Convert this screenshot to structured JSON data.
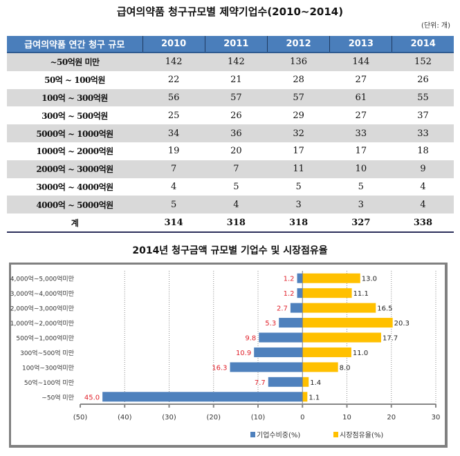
{
  "table": {
    "title": "급여의약품 청구규모별 제약기업수(2010~2014)",
    "unit_note": "(단위: 개)",
    "header": [
      "급여의약품 연간 청구 규모",
      "2010",
      "2011",
      "2012",
      "2013",
      "2014"
    ],
    "rows": [
      {
        "label": "~50억원 미만",
        "values": [
          "142",
          "142",
          "136",
          "144",
          "152"
        ]
      },
      {
        "label": "50억 ~ 100억원",
        "values": [
          "22",
          "21",
          "28",
          "27",
          "26"
        ]
      },
      {
        "label": "100억 ~ 300억원",
        "values": [
          "56",
          "57",
          "57",
          "61",
          "55"
        ]
      },
      {
        "label": "300억 ~ 500억원",
        "values": [
          "25",
          "26",
          "29",
          "27",
          "37"
        ]
      },
      {
        "label": "5000억 ~ 1000억원",
        "values": [
          "34",
          "36",
          "32",
          "33",
          "33"
        ]
      },
      {
        "label": "1000억 ~ 2000억원",
        "values": [
          "19",
          "20",
          "17",
          "17",
          "18"
        ]
      },
      {
        "label": "2000억 ~ 3000억원",
        "values": [
          "7",
          "7",
          "11",
          "10",
          "9"
        ]
      },
      {
        "label": "3000억 ~ 4000억원",
        "values": [
          "4",
          "5",
          "5",
          "5",
          "4"
        ]
      },
      {
        "label": "4000억 ~ 5000억원",
        "values": [
          "5",
          "4",
          "3",
          "3",
          "4"
        ]
      }
    ],
    "total": {
      "label": "계",
      "values": [
        "314",
        "318",
        "318",
        "327",
        "338"
      ]
    }
  },
  "chart_data": {
    "type": "bar",
    "orientation": "horizontal",
    "title": "2014년 청구금액 규모별 기업수 및 시장점유율",
    "categories": [
      "4,000억~5,000억미만",
      "3,000억~4,000억미만",
      "2,000억~3,000억미만",
      "1,000억~2,000억미만",
      "500억~1,000억미만",
      "300억~500억 미만",
      "100억~300억미만",
      "50억~100억 미만",
      "~50억 미만"
    ],
    "series": [
      {
        "name": "기업수비중(%)",
        "color": "#4f81bd",
        "label_color": "#e0202a",
        "values": [
          -1.2,
          -1.2,
          -2.7,
          -5.3,
          -9.8,
          -10.9,
          -16.3,
          -7.7,
          -45.0
        ],
        "labels": [
          "1.2",
          "1.2",
          "2.7",
          "5.3",
          "9.8",
          "10.9",
          "16.3",
          "7.7",
          "45.0"
        ]
      },
      {
        "name": "시장점유율(%)",
        "color": "#ffc000",
        "label_color": "#222222",
        "values": [
          13.0,
          11.1,
          16.5,
          20.3,
          17.7,
          11.0,
          8.0,
          1.4,
          1.1
        ],
        "labels": [
          "13.0",
          "11.1",
          "16.5",
          "20.3",
          "17.7",
          "11.0",
          "8.0",
          "1.4",
          "1.1"
        ]
      }
    ],
    "xlim": [
      -50,
      30
    ],
    "xticks": [
      -50,
      -40,
      -30,
      -20,
      -10,
      0,
      10,
      20,
      30
    ],
    "xtick_labels": [
      "(50)",
      "(40)",
      "(30)",
      "(20)",
      "(10)",
      "0",
      "10",
      "20",
      "30"
    ],
    "grid": "vertical dotted",
    "legend": "bottom"
  }
}
